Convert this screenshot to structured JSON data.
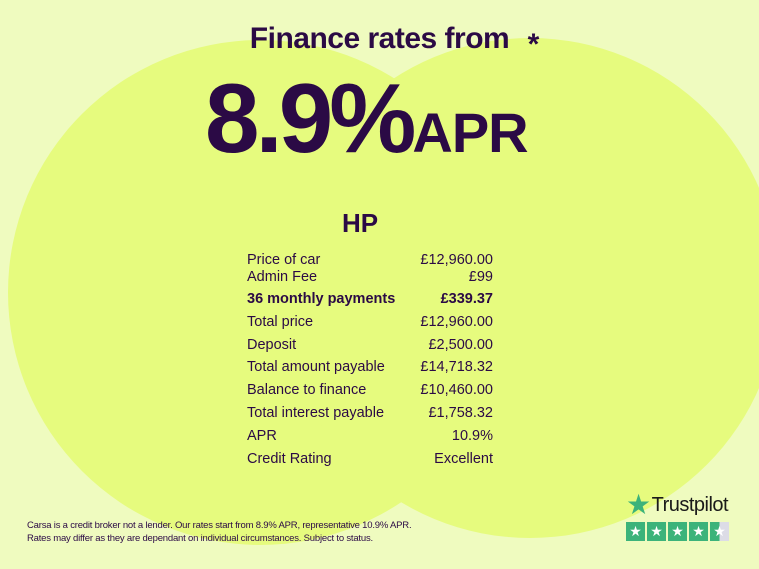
{
  "header": {
    "subtitle": "Finance rates from",
    "rate": "8.9%",
    "apr": "APR",
    "asterisk": "*"
  },
  "section_title": "HP",
  "rows": [
    {
      "label": "Price of car",
      "value": "£12,960.00"
    },
    {
      "label": "Admin Fee",
      "value": "£99"
    },
    {
      "label": "36 monthly payments",
      "value": "£339.37",
      "bold": true
    },
    {
      "label": "Total price",
      "value": "£12,960.00"
    },
    {
      "label": "Deposit",
      "value": "£2,500.00"
    },
    {
      "label": "Total amount payable",
      "value": "£14,718.32"
    },
    {
      "label": "Balance to finance",
      "value": "£10,460.00"
    },
    {
      "label": "Total interest payable",
      "value": "£1,758.32"
    },
    {
      "label": "APR",
      "value": "10.9%"
    },
    {
      "label": "Credit Rating",
      "value": "Excellent"
    }
  ],
  "disclaimer": {
    "line1": "Carsa is a credit broker not a lender. Our rates start from 8.9% APR, representative 10.9% APR.",
    "line2": "Rates may differ as they are dependant on individual circumstances. Subject to status."
  },
  "trustpilot": {
    "name": "Trustpilot",
    "rating": 4.5,
    "max": 5,
    "color": "#3cb37a"
  },
  "colors": {
    "text": "#2b0a45",
    "background": "#effbbf",
    "circle": "#e6fb7e"
  }
}
